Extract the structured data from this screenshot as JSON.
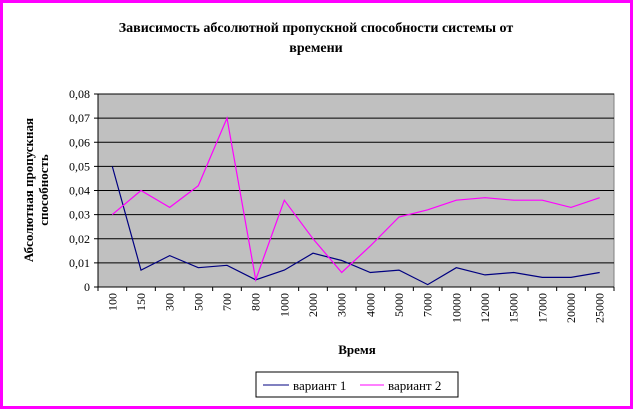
{
  "chart_data": {
    "type": "line",
    "title_lines": [
      "Зависимость абсолютной пропускной способности системы от",
      "времени"
    ],
    "xlabel": "Время",
    "ylabel_lines": [
      "Абсолютная пропускная",
      "способность"
    ],
    "categories": [
      "100",
      "150",
      "300",
      "500",
      "700",
      "800",
      "1000",
      "2000",
      "3000",
      "4000",
      "5000",
      "7000",
      "10000",
      "12000",
      "15000",
      "17000",
      "20000",
      "25000"
    ],
    "ylim": [
      0,
      0.08
    ],
    "yticks": [
      "0",
      "0,01",
      "0,02",
      "0,03",
      "0,04",
      "0,05",
      "0,06",
      "0,07",
      "0,08"
    ],
    "grid": true,
    "legend_position": "bottom",
    "plot_background": "#c0c0c0",
    "frame_color": "#ff00ff",
    "series": [
      {
        "name": "вариант 1",
        "color": "#000080",
        "values": [
          0.05,
          0.007,
          0.013,
          0.008,
          0.009,
          0.003,
          0.007,
          0.014,
          0.011,
          0.006,
          0.007,
          0.001,
          0.008,
          0.005,
          0.006,
          0.004,
          0.004,
          0.006
        ]
      },
      {
        "name": "вариант 2",
        "color": "#ff00ff",
        "values": [
          0.03,
          0.04,
          0.033,
          0.042,
          0.07,
          0.003,
          0.036,
          0.02,
          0.006,
          0.017,
          0.029,
          0.032,
          0.036,
          0.037,
          0.036,
          0.036,
          0.033,
          0.037
        ]
      }
    ]
  }
}
